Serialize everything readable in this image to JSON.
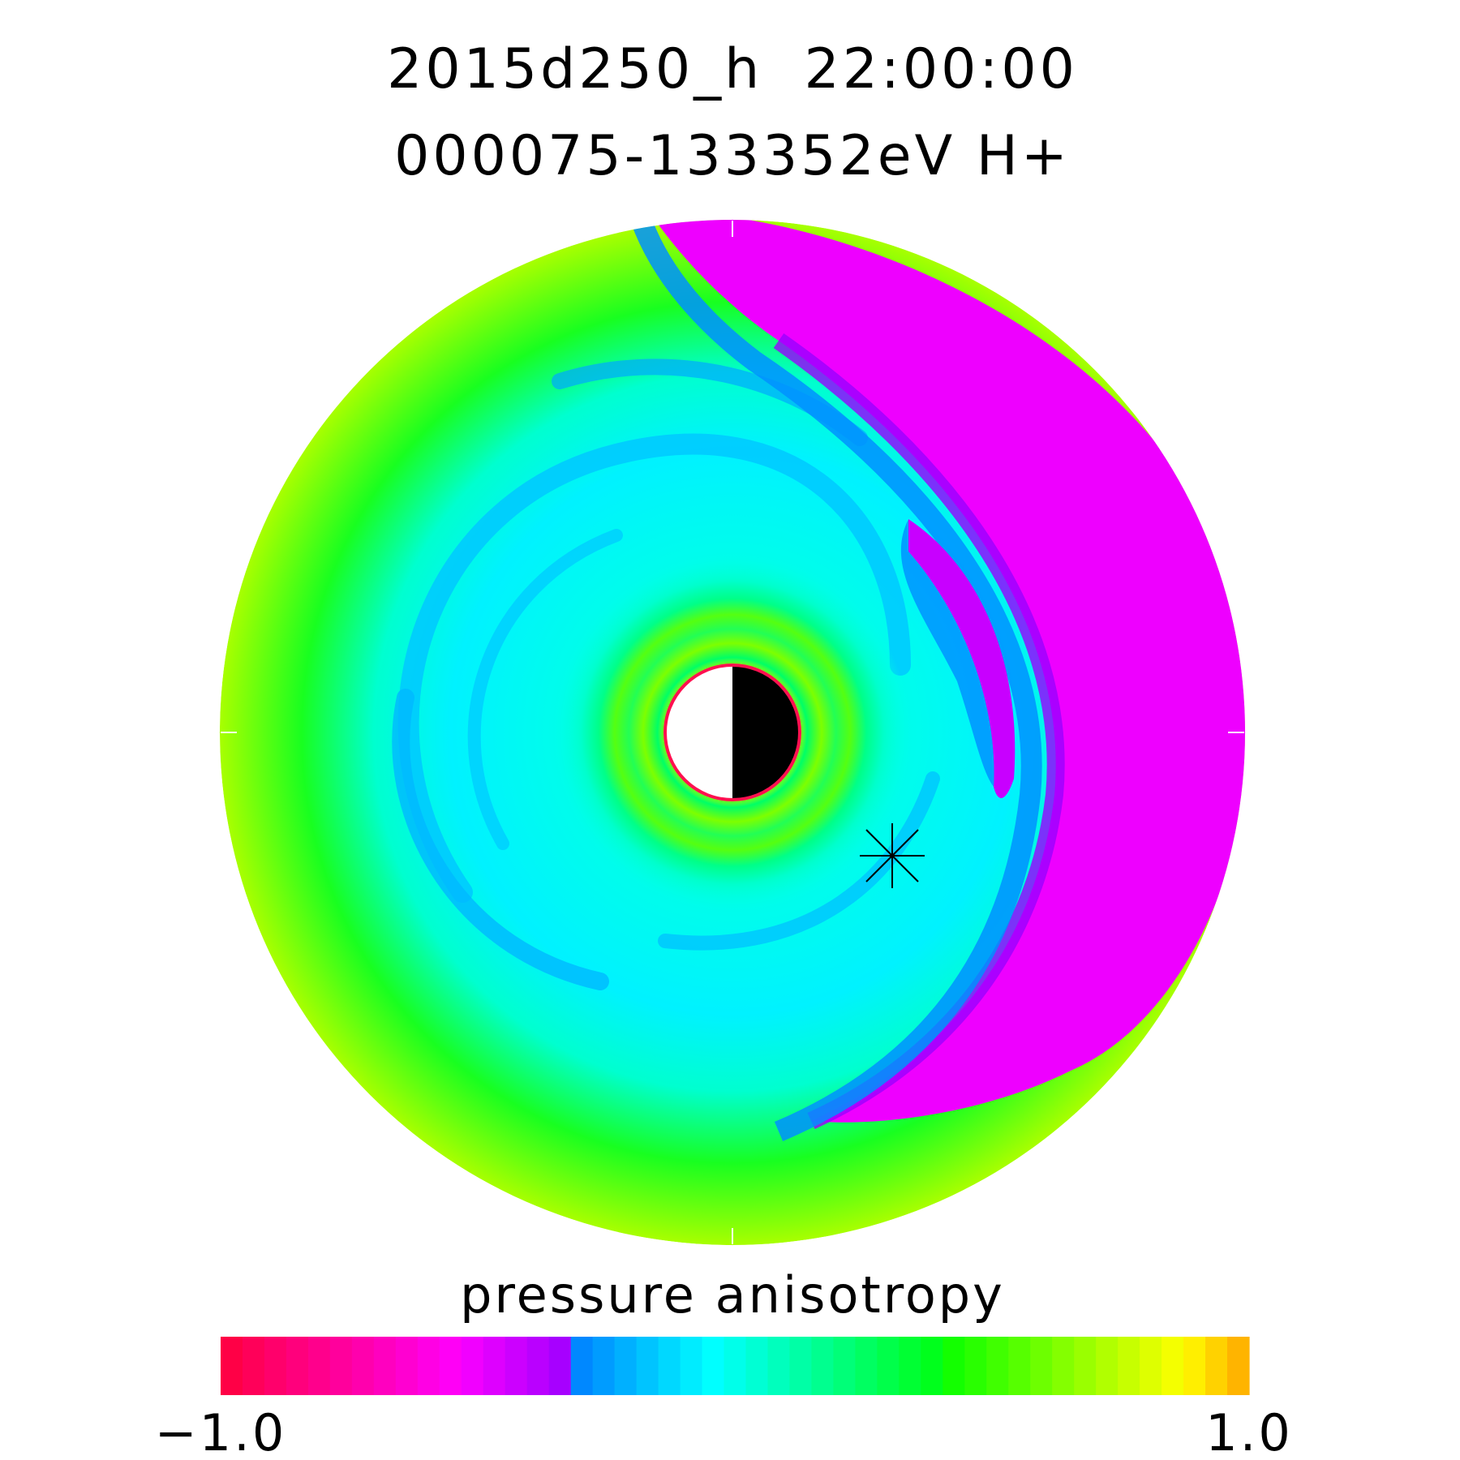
{
  "header": {
    "title_line1": "2015d250_h  22:00:00",
    "title_line2": "000075-133352eV H+"
  },
  "chart_data": {
    "type": "heatmap",
    "projection": "polar",
    "title": "2015d250_h  22:00:00",
    "subtitle": "000075-133352eV H+",
    "colorbar": {
      "label": "pressure anisotropy",
      "min": -1.0,
      "max": 1.0,
      "min_label": "−1.0",
      "max_label": "1.0",
      "colors": [
        "#ff0046",
        "#ff0059",
        "#ff006b",
        "#ff007c",
        "#ff008c",
        "#ff009c",
        "#ff00ad",
        "#ff00bf",
        "#ff00d1",
        "#ff00e4",
        "#ff00f6",
        "#f100ff",
        "#de00ff",
        "#cc00ff",
        "#ba00ff",
        "#a700ff",
        "#0088ff",
        "#009cff",
        "#00b0ff",
        "#00c4ff",
        "#00d8ff",
        "#00ecff",
        "#00ffff",
        "#00ffea",
        "#00ffd4",
        "#00ffbd",
        "#00ffa6",
        "#00ff8f",
        "#00ff78",
        "#00ff61",
        "#00ff4a",
        "#00ff33",
        "#00ff1c",
        "#13ff00",
        "#29ff00",
        "#40ff00",
        "#56ff00",
        "#6dff00",
        "#84ff00",
        "#9aff00",
        "#b1ff00",
        "#c7ff00",
        "#deff00",
        "#f4ff00",
        "#ffef00",
        "#ffd200",
        "#ffb400"
      ]
    },
    "regions_described": {
      "outer_left_ring": "green to yellow-green (positive anisotropy ~0.5-0.8)",
      "inner_spiral": "cyan to blue (slightly positive ~0.0-0.2)",
      "inner_ring": "green to yellow near planet (~0.5-0.7)",
      "right_crescent": "magenta/purple (negative anisotropy ~ -0.3 to -0.1)"
    },
    "grid": false,
    "markers": [
      {
        "symbol": "asterisk",
        "color": "#000000"
      }
    ],
    "planet": {
      "day_color": "#ffffff",
      "night_color": "#000000",
      "outline_color": "#ff1050"
    }
  }
}
